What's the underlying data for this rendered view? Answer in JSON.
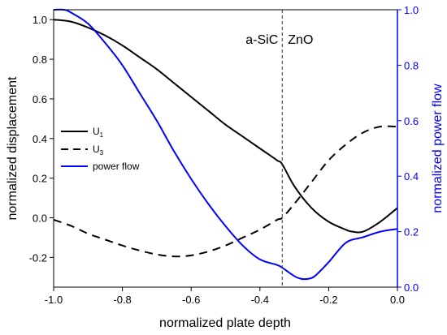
{
  "chart_data": {
    "type": "line",
    "xlabel": "normalized plate depth",
    "ylabel_left": "normalized displacement",
    "ylabel_right": "normalized power flow",
    "xlim": [
      -1.0,
      0.0
    ],
    "ylim_left": [
      -0.35,
      1.05
    ],
    "ylim_right": [
      0.0,
      1.0
    ],
    "x_ticks": [
      -1.0,
      -0.8,
      -0.6,
      -0.4,
      -0.2,
      0.0
    ],
    "x_tick_labels": [
      "-1.0",
      "-0.8",
      "-0.6",
      "-0.4",
      "-0.2",
      "0.0"
    ],
    "y_left_ticks": [
      -0.2,
      0.0,
      0.2,
      0.4,
      0.6,
      0.8,
      1.0
    ],
    "y_left_tick_labels": [
      "-0.2",
      "0.0",
      "0.2",
      "0.4",
      "0.6",
      "0.8",
      "1.0"
    ],
    "y_right_ticks": [
      0.0,
      0.2,
      0.4,
      0.6,
      0.8,
      1.0
    ],
    "y_right_tick_labels": [
      "0.0",
      "0.2",
      "0.4",
      "0.6",
      "0.8",
      "1.0"
    ],
    "grid": false,
    "legend_position": "left-middle",
    "interface": {
      "x": -0.335,
      "left_label": "a-SiC",
      "right_label": "ZnO"
    },
    "colors": {
      "u1": "#000000",
      "u3": "#000000",
      "power_flow": "#0000ff",
      "right_axis": "#0000ff"
    },
    "series": [
      {
        "name": "U",
        "subscript": "1",
        "axis": "left",
        "style": "solid",
        "x": [
          -1.0,
          -0.95,
          -0.9,
          -0.85,
          -0.8,
          -0.75,
          -0.7,
          -0.65,
          -0.6,
          -0.55,
          -0.5,
          -0.45,
          -0.4,
          -0.35,
          -0.335,
          -0.3,
          -0.25,
          -0.2,
          -0.15,
          -0.13,
          -0.1,
          -0.05,
          0.0
        ],
        "y": [
          1.0,
          0.99,
          0.96,
          0.92,
          0.87,
          0.81,
          0.75,
          0.68,
          0.61,
          0.54,
          0.47,
          0.41,
          0.35,
          0.29,
          0.27,
          0.16,
          0.05,
          -0.02,
          -0.06,
          -0.07,
          -0.07,
          -0.02,
          0.05
        ]
      },
      {
        "name": "U",
        "subscript": "3",
        "axis": "left",
        "style": "dashed",
        "x": [
          -1.0,
          -0.95,
          -0.9,
          -0.85,
          -0.8,
          -0.75,
          -0.7,
          -0.65,
          -0.6,
          -0.55,
          -0.5,
          -0.45,
          -0.4,
          -0.35,
          -0.335,
          -0.3,
          -0.25,
          -0.2,
          -0.15,
          -0.1,
          -0.05,
          0.0
        ],
        "y": [
          -0.01,
          -0.04,
          -0.08,
          -0.11,
          -0.14,
          -0.165,
          -0.185,
          -0.195,
          -0.19,
          -0.17,
          -0.14,
          -0.1,
          -0.06,
          -0.01,
          0.0,
          0.07,
          0.18,
          0.29,
          0.37,
          0.43,
          0.46,
          0.46
        ]
      },
      {
        "name": "power flow",
        "axis": "right",
        "style": "solid",
        "x": [
          -1.0,
          -0.97,
          -0.95,
          -0.9,
          -0.85,
          -0.8,
          -0.75,
          -0.7,
          -0.65,
          -0.6,
          -0.55,
          -0.5,
          -0.45,
          -0.4,
          -0.35,
          -0.335,
          -0.3,
          -0.28,
          -0.26,
          -0.24,
          -0.2,
          -0.15,
          -0.1,
          -0.05,
          0.0
        ],
        "y": [
          1.0,
          1.0,
          0.99,
          0.95,
          0.88,
          0.8,
          0.7,
          0.6,
          0.49,
          0.39,
          0.3,
          0.22,
          0.15,
          0.1,
          0.08,
          0.07,
          0.04,
          0.03,
          0.03,
          0.04,
          0.09,
          0.16,
          0.18,
          0.2,
          0.21
        ]
      }
    ]
  }
}
